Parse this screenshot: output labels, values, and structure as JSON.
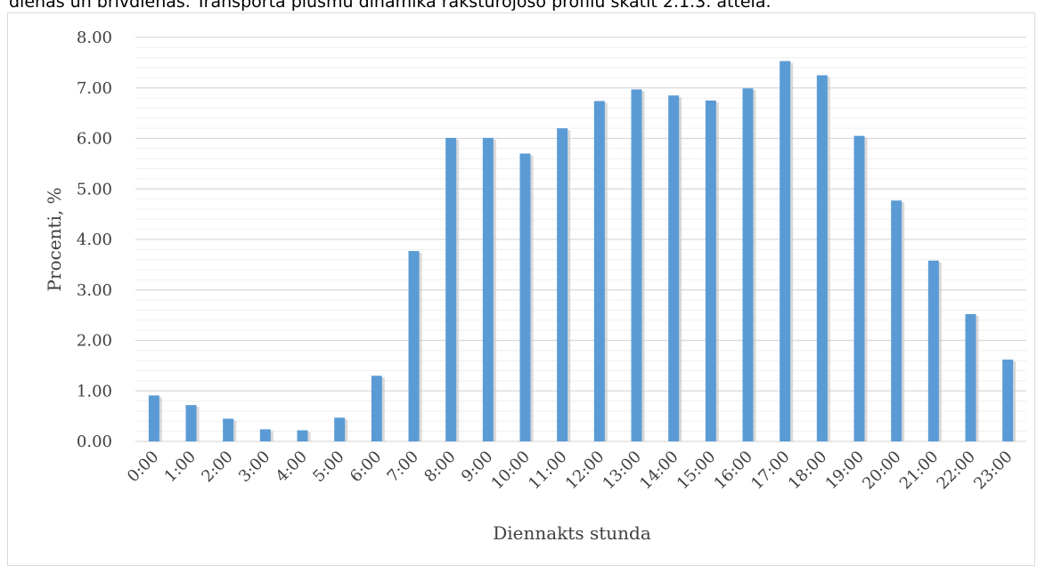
{
  "intro_text": "dienas un brīvdienas. Transporta plūsmu dinamika raksturojošo profilu skatīt 2.1.3. attēlā.",
  "colors": {
    "bar": "#5b9bd5",
    "bar_shadow": "#c9c9c9",
    "major_grid": "#d9d9d9",
    "minor_grid": "#efefef",
    "axis_text": "#404040"
  },
  "chart_data": {
    "type": "bar",
    "title": "",
    "xlabel": "Diennakts stunda",
    "ylabel": "Procenti, %",
    "ylim": [
      0,
      8
    ],
    "y_major_step": 1,
    "y_minor_step": 0.2,
    "y_tick_labels": [
      "0.00",
      "1.00",
      "2.00",
      "3.00",
      "4.00",
      "5.00",
      "6.00",
      "7.00",
      "8.00"
    ],
    "grid": true,
    "legend": "none",
    "categories": [
      "0:00",
      "1:00",
      "2:00",
      "3:00",
      "4:00",
      "5:00",
      "6:00",
      "7:00",
      "8:00",
      "9:00",
      "10:00",
      "11:00",
      "12:00",
      "13:00",
      "14:00",
      "15:00",
      "16:00",
      "17:00",
      "18:00",
      "19:00",
      "20:00",
      "21:00",
      "22:00",
      "23:00"
    ],
    "values": [
      0.91,
      0.72,
      0.45,
      0.24,
      0.22,
      0.47,
      1.3,
      3.77,
      6.01,
      6.01,
      5.7,
      6.2,
      6.74,
      6.97,
      6.85,
      6.75,
      6.99,
      7.53,
      7.25,
      6.05,
      4.77,
      3.58,
      2.52,
      1.62
    ]
  }
}
